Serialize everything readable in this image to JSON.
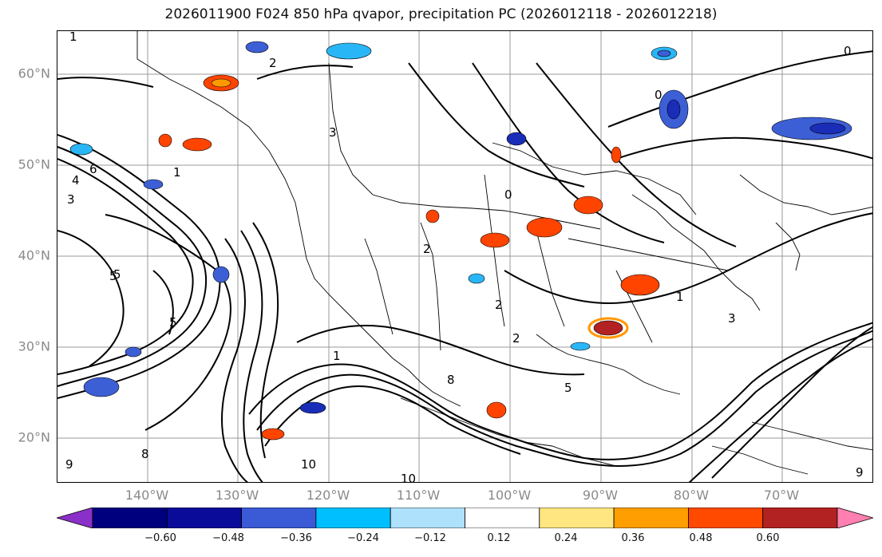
{
  "title": "2026011900 F024 850 hPa qvapor, precipitation PC (2026012118 - 2026012218)",
  "map": {
    "lat_labels": [
      "60°N",
      "50°N",
      "40°N",
      "30°N",
      "20°N"
    ],
    "lon_labels": [
      "140°W",
      "130°W",
      "120°W",
      "110°W",
      "100°W",
      "90°W",
      "80°W",
      "70°W"
    ],
    "contour_labels": [
      "1",
      "2",
      "3",
      "4",
      "5",
      "6",
      "8",
      "9",
      "10",
      "0",
      "1",
      "2",
      "3",
      "5",
      "5",
      "2",
      "1",
      "2",
      "1",
      "5",
      "10",
      "9",
      "8",
      "0",
      "0",
      "3"
    ],
    "colors": {
      "neg_strong": "#1a2db8",
      "neg_mid": "#3d5fd6",
      "neg_light": "#29b6f6",
      "pos_light": "#ffe680",
      "pos_mid": "#ff9900",
      "pos_strong": "#ff4400",
      "pos_max": "#b22222"
    }
  },
  "colorbar": {
    "ticks": [
      "−0.60",
      "−0.48",
      "−0.36",
      "−0.24",
      "−0.12",
      "0.12",
      "0.24",
      "0.36",
      "0.48",
      "0.60"
    ],
    "colors": [
      "#8b2fc9",
      "#00007f",
      "#0b0b9a",
      "#3a5ad6",
      "#00bfff",
      "#aee1fb",
      "#ffffff",
      "#ffe680",
      "#ff9e00",
      "#ff4a00",
      "#b22222",
      "#ff80b0"
    ]
  }
}
